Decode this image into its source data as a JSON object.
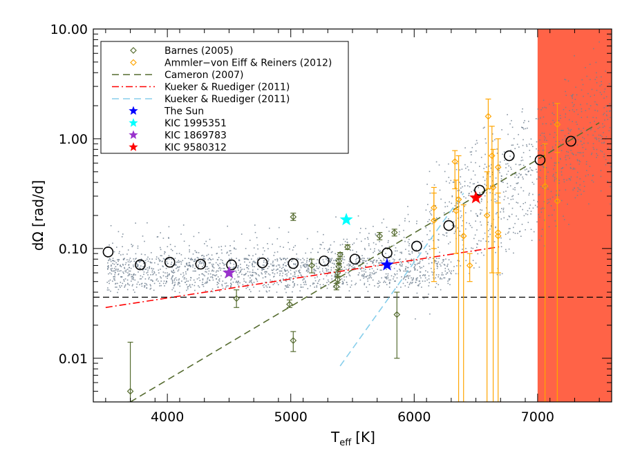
{
  "chart_data": {
    "type": "scatter",
    "title": "",
    "xlabel": "T",
    "xlabel_sub": "eff",
    "xlabel_unit": "[K]",
    "ylabel": "dΩ [rad/d]",
    "xlim": [
      3400,
      7600
    ],
    "ylim": [
      0.004,
      10
    ],
    "yscale": "log",
    "x_ticks": [
      4000,
      5000,
      6000,
      7000
    ],
    "x_tick_labels": [
      "4000",
      "5000",
      "6000",
      "7000"
    ],
    "y_ticks": [
      0.01,
      0.1,
      1,
      10
    ],
    "y_tick_labels": [
      "0.01",
      "0.10",
      "1.00",
      "10.00"
    ],
    "shaded_region": {
      "x": [
        7000,
        7600
      ],
      "color": "#ff6347"
    },
    "horizontal_line": {
      "y": 0.036,
      "style": "dashed",
      "color": "#000000"
    },
    "background_cloud": {
      "color": "#708090",
      "x_range": [
        3500,
        7600
      ],
      "y_range": [
        0.04,
        3.0
      ]
    },
    "legend_position": "top-left",
    "legend": [
      {
        "label": "Barnes (2005)",
        "marker": "diamond",
        "color": "#556b2f"
      },
      {
        "label": "Ammler−von Eiff & Reiners (2012)",
        "marker": "diamond",
        "color": "#ffa500"
      },
      {
        "label": "Cameron (2007)",
        "line": "dashed",
        "color": "#556b2f"
      },
      {
        "label": "Kueker & Ruediger (2011)",
        "line": "dashdot",
        "color": "#ff0000"
      },
      {
        "label": "Kueker & Ruediger (2011)",
        "line": "dashed",
        "color": "#87ceeb"
      },
      {
        "label": "The Sun",
        "marker": "star",
        "color": "#0000ff"
      },
      {
        "label": "KIC 1995351",
        "marker": "star",
        "color": "#00ffff"
      },
      {
        "label": "KIC 1869783",
        "marker": "star",
        "color": "#9932cc"
      },
      {
        "label": "KIC 9580312",
        "marker": "star",
        "color": "#ff0000"
      }
    ],
    "series": [
      {
        "name": "Barnes (2005)",
        "color": "#556b2f",
        "points": [
          {
            "x": 3700,
            "y": 0.005,
            "ylo": 0.004,
            "yhi": 0.014
          },
          {
            "x": 4560,
            "y": 0.035,
            "ylo": 0.029,
            "yhi": 0.042
          },
          {
            "x": 4990,
            "y": 0.031,
            "ylo": 0.029,
            "yhi": 0.034
          },
          {
            "x": 5020,
            "y": 0.194,
            "ylo": 0.18,
            "yhi": 0.21
          },
          {
            "x": 5020,
            "y": 0.0145,
            "ylo": 0.0115,
            "yhi": 0.0175
          },
          {
            "x": 5170,
            "y": 0.07,
            "ylo": 0.06,
            "yhi": 0.08
          },
          {
            "x": 5370,
            "y": 0.045,
            "ylo": 0.042,
            "yhi": 0.048
          },
          {
            "x": 5380,
            "y": 0.052,
            "ylo": 0.049,
            "yhi": 0.055
          },
          {
            "x": 5380,
            "y": 0.06,
            "ylo": 0.056,
            "yhi": 0.064
          },
          {
            "x": 5390,
            "y": 0.068,
            "ylo": 0.064,
            "yhi": 0.072
          },
          {
            "x": 5390,
            "y": 0.077,
            "ylo": 0.073,
            "yhi": 0.081
          },
          {
            "x": 5400,
            "y": 0.088,
            "ylo": 0.084,
            "yhi": 0.092
          },
          {
            "x": 5460,
            "y": 0.103,
            "ylo": 0.098,
            "yhi": 0.108
          },
          {
            "x": 5720,
            "y": 0.13,
            "ylo": 0.12,
            "yhi": 0.14
          },
          {
            "x": 5840,
            "y": 0.14,
            "ylo": 0.13,
            "yhi": 0.15
          },
          {
            "x": 5860,
            "y": 0.025,
            "ylo": 0.01,
            "yhi": 0.04
          }
        ]
      },
      {
        "name": "Ammler−von Eiff & Reiners (2012)",
        "color": "#ffa500",
        "points": [
          {
            "x": 6160,
            "y": 0.18,
            "ylo": 0.05,
            "yhi": 0.36
          },
          {
            "x": 6160,
            "y": 0.235,
            "ylo": 0.1,
            "yhi": 0.32
          },
          {
            "x": 6330,
            "y": 0.62,
            "ylo": 0.35,
            "yhi": 0.78
          },
          {
            "x": 6340,
            "y": 0.22,
            "ylo": 0.09,
            "yhi": 0.42
          },
          {
            "x": 6360,
            "y": 0.28,
            "ylo": 0.004,
            "yhi": 0.7
          },
          {
            "x": 6400,
            "y": 0.13,
            "ylo": 0.004,
            "yhi": 0.25
          },
          {
            "x": 6450,
            "y": 0.07,
            "ylo": 0.05,
            "yhi": 0.09
          },
          {
            "x": 6590,
            "y": 0.2,
            "ylo": 0.004,
            "yhi": 0.5
          },
          {
            "x": 6600,
            "y": 1.6,
            "ylo": 0.35,
            "yhi": 2.3
          },
          {
            "x": 6630,
            "y": 0.7,
            "ylo": 0.06,
            "yhi": 1.3
          },
          {
            "x": 6640,
            "y": 0.36,
            "ylo": 0.004,
            "yhi": 0.8
          },
          {
            "x": 6680,
            "y": 0.55,
            "ylo": 0.06,
            "yhi": 1.0
          },
          {
            "x": 6680,
            "y": 0.14,
            "ylo": 0.004,
            "yhi": 0.32
          },
          {
            "x": 6680,
            "y": 0.13,
            "ylo": 0.06,
            "yhi": 0.26
          },
          {
            "x": 7060,
            "y": 0.37,
            "ylo": 0.004,
            "yhi": 0.9
          },
          {
            "x": 7160,
            "y": 1.35,
            "ylo": 0.004,
            "yhi": 2.1
          },
          {
            "x": 7160,
            "y": 0.27,
            "ylo": 0.004,
            "yhi": 0.75
          }
        ]
      },
      {
        "name": "binned",
        "marker": "circle",
        "color": "#000000",
        "points": [
          {
            "x": 3520,
            "y": 0.093
          },
          {
            "x": 3780,
            "y": 0.071
          },
          {
            "x": 4020,
            "y": 0.075
          },
          {
            "x": 4270,
            "y": 0.072
          },
          {
            "x": 4520,
            "y": 0.071
          },
          {
            "x": 4770,
            "y": 0.074
          },
          {
            "x": 5020,
            "y": 0.073
          },
          {
            "x": 5270,
            "y": 0.077
          },
          {
            "x": 5520,
            "y": 0.08
          },
          {
            "x": 5780,
            "y": 0.091
          },
          {
            "x": 6020,
            "y": 0.105
          },
          {
            "x": 6280,
            "y": 0.162
          },
          {
            "x": 6530,
            "y": 0.34
          },
          {
            "x": 6770,
            "y": 0.7
          },
          {
            "x": 7020,
            "y": 0.64
          },
          {
            "x": 7270,
            "y": 0.95
          }
        ]
      },
      {
        "name": "Cameron (2007)",
        "line": "dashed",
        "color": "#556b2f",
        "points": [
          {
            "x": 3700,
            "y": 0.004
          },
          {
            "x": 7500,
            "y": 1.4
          }
        ]
      },
      {
        "name": "Kueker & Ruediger (2011)",
        "line": "dashdot",
        "color": "#ff0000",
        "points": [
          {
            "x": 3500,
            "y": 0.029
          },
          {
            "x": 6700,
            "y": 0.104
          }
        ]
      },
      {
        "name": "Kueker & Ruediger (2011)",
        "line": "dashed",
        "color": "#87ceeb",
        "points": [
          {
            "x": 5400,
            "y": 0.0085
          },
          {
            "x": 6400,
            "y": 0.32
          }
        ]
      },
      {
        "name": "The Sun",
        "marker": "star",
        "color": "#0000ff",
        "points": [
          {
            "x": 5780,
            "y": 0.071
          }
        ]
      },
      {
        "name": "KIC 1995351",
        "marker": "star",
        "color": "#00ffff",
        "points": [
          {
            "x": 5450,
            "y": 0.183
          }
        ]
      },
      {
        "name": "KIC 1869783",
        "marker": "star",
        "color": "#9932cc",
        "points": [
          {
            "x": 4500,
            "y": 0.06
          }
        ]
      },
      {
        "name": "KIC 9580312",
        "marker": "star",
        "color": "#ff0000",
        "points": [
          {
            "x": 6500,
            "y": 0.29
          }
        ]
      }
    ]
  }
}
